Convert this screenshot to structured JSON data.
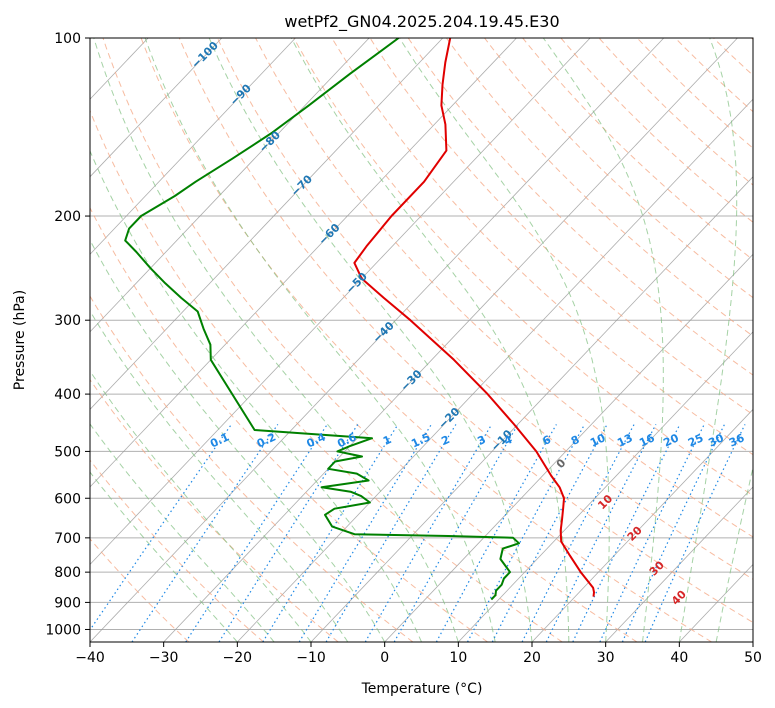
{
  "chart_data": {
    "type": "line",
    "title": "wetPf2_GN04.2025.204.19.45.E30",
    "xlabel": "Temperature (°C)",
    "ylabel": "Pressure (hPa)",
    "xlim": [
      -40,
      50
    ],
    "ylim": [
      1050,
      100
    ],
    "yscale": "log",
    "skew": "skew-T",
    "grid": true,
    "x_ticks": [
      "−40",
      "−30",
      "−20",
      "−10",
      "0",
      "10",
      "20",
      "30",
      "40",
      "50"
    ],
    "x_tick_values": [
      -40,
      -30,
      -20,
      -10,
      0,
      10,
      20,
      30,
      40,
      50
    ],
    "y_ticks": [
      "100",
      "200",
      "300",
      "400",
      "500",
      "600",
      "700",
      "800",
      "900",
      "1000"
    ],
    "y_tick_values": [
      100,
      200,
      300,
      400,
      500,
      600,
      700,
      800,
      900,
      1000
    ],
    "colors": {
      "temperature": "#e00000",
      "dewpoint": "#008000",
      "isotherm": "#999999",
      "dry_adiabat": "#f4a582",
      "moist_adiabat": "#7fbf7f",
      "mixing_ratio": "#1e88e5",
      "isotherm_label": "#1f77b4",
      "moist_label_red": "#d62728",
      "moist_label_gray": "#666666"
    },
    "series": [
      {
        "key": "temperature",
        "pressure": [
          880,
          865,
          850,
          800,
          750,
          710,
          700,
          680,
          650,
          620,
          600,
          575,
          550,
          500,
          450,
          400,
          350,
          300,
          275,
          255,
          240,
          225,
          200,
          175,
          155,
          140,
          130,
          120,
          110,
          100
        ],
        "temp": [
          22.5,
          22.0,
          21.3,
          17.6,
          14.0,
          11.0,
          10.5,
          9.5,
          8.2,
          6.8,
          5.8,
          3.8,
          1.2,
          -4.0,
          -10.5,
          -18.0,
          -27.0,
          -38.0,
          -44.5,
          -50.0,
          -53.0,
          -53.5,
          -54.0,
          -54.0,
          -55.0,
          -58.5,
          -61.5,
          -64.0,
          -66.5,
          -69.0
        ]
      },
      {
        "key": "dewpoint",
        "pressure": [
          890,
          875,
          860,
          840,
          820,
          800,
          760,
          730,
          715,
          700,
          695,
          690,
          670,
          640,
          625,
          610,
          595,
          585,
          575,
          560,
          545,
          535,
          520,
          510,
          500,
          490,
          475,
          460,
          350,
          330,
          310,
          290,
          275,
          260,
          245,
          230,
          220,
          210,
          200,
          185,
          175,
          160,
          145,
          130,
          115,
          100
        ],
        "temp": [
          9.0,
          9.0,
          8.5,
          8.5,
          8.0,
          8.0,
          5.0,
          4.0,
          5.5,
          4.0,
          -5.0,
          -18.0,
          -22.0,
          -24.5,
          -24.0,
          -20.0,
          -22.0,
          -24.0,
          -28.5,
          -23.0,
          -25.5,
          -30.0,
          -30.0,
          -27.0,
          -31.0,
          -30.0,
          -28.0,
          -45.0,
          -60.0,
          -62.0,
          -65.0,
          -68.0,
          -72.0,
          -76.0,
          -80.0,
          -84.0,
          -87.0,
          -88.0,
          -88.0,
          -86.0,
          -85.0,
          -83.0,
          -81.0,
          -79.5,
          -78.0,
          -76.0
        ]
      }
    ],
    "isotherm_labels": [
      "−100",
      "−90",
      "−80",
      "−70",
      "−60",
      "−50",
      "−40",
      "−30",
      "−20",
      "−10"
    ],
    "isotherm_label_values": [
      -100,
      -90,
      -80,
      -70,
      -60,
      -50,
      -40,
      -30,
      -20,
      -10
    ],
    "mixing_ratio_labels": [
      "0.1",
      "0.2",
      "0.4",
      "0.6",
      "1",
      "1.5",
      "2",
      "3",
      "4",
      "6",
      "8",
      "10",
      "13",
      "16",
      "20",
      "25",
      "30",
      "36"
    ],
    "mixing_ratio_values": [
      0.1,
      0.2,
      0.4,
      0.6,
      1,
      1.5,
      2,
      3,
      4,
      6,
      8,
      10,
      13,
      16,
      20,
      25,
      30,
      36
    ],
    "moist_adiabat_labels": [
      "0",
      "10",
      "20",
      "30",
      "40"
    ],
    "moist_adiabat_values": [
      0,
      10,
      20,
      30,
      40
    ]
  }
}
